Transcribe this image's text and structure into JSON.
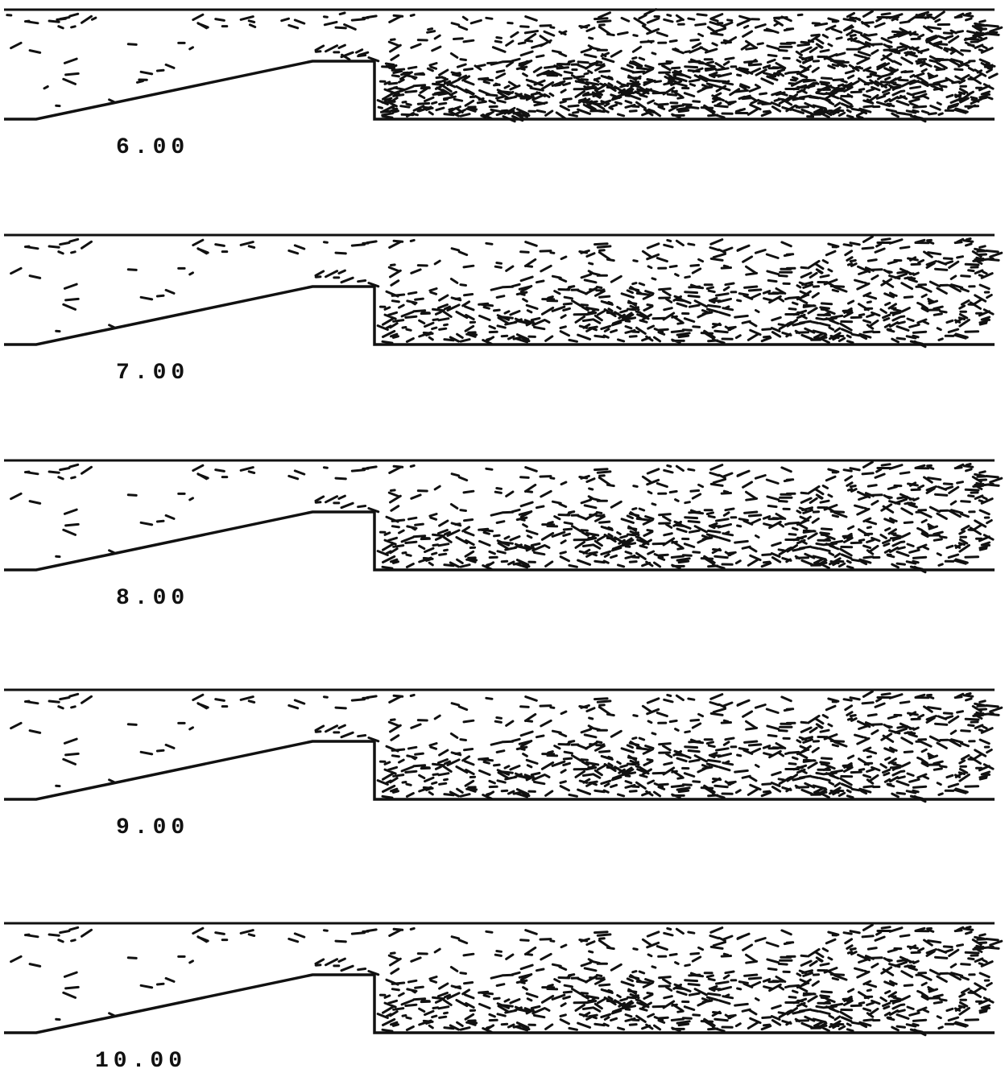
{
  "panels": [
    {
      "label": "6.00"
    },
    {
      "label": "7.00"
    },
    {
      "label": "8.00"
    },
    {
      "label": "9.00"
    },
    {
      "label": "10.00"
    }
  ]
}
